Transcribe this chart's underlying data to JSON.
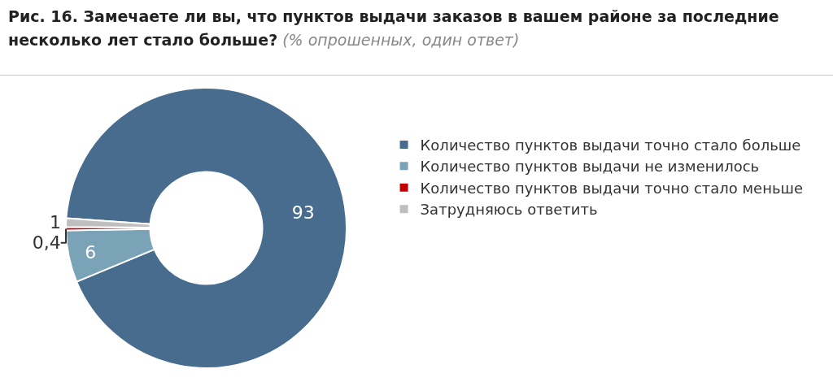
{
  "chart_data": {
    "type": "donut",
    "title": "Рис. 16. Замечаете ли вы, что пунктов выдачи заказов в вашем районе за последние несколько лет стало больше?",
    "subtitle": "(% опрошенных, один ответ)",
    "categories": [
      "Количество пунктов выдачи точно стало больше",
      "Количество пунктов выдачи не изменилось",
      "Количество пунктов выдачи точно стало меньше",
      "Затрудняюсь ответить"
    ],
    "values": [
      93,
      6,
      0.4,
      1
    ],
    "colors": [
      "#476c8e",
      "#7ba3b8",
      "#c00000",
      "#bfbfbf"
    ],
    "value_labels": [
      "93",
      "6",
      "0,4",
      "1"
    ],
    "legend": "right"
  }
}
